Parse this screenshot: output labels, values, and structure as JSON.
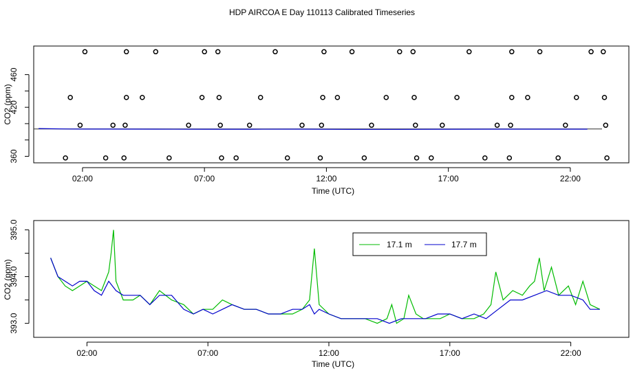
{
  "title": "HDP AIRCOA E  Day 110113  Calibrated Timeseries",
  "colors": {
    "green": "#00bb00",
    "blue": "#0000cc",
    "ref": "#444444"
  },
  "chart_data": [
    {
      "type": "scatter",
      "title": "HDP AIRCOA E  Day 110113  Calibrated Timeseries",
      "xlabel": "Time (UTC)",
      "ylabel": "CO2 (ppm)",
      "xlim": [
        0.0,
        24.4
      ],
      "ylim": [
        352,
        495
      ],
      "xticks": [
        2,
        7,
        12,
        17,
        22
      ],
      "xtick_labels": [
        "02:00",
        "07:00",
        "12:00",
        "17:00",
        "22:00"
      ],
      "yticks": [
        360,
        380,
        400,
        420,
        440,
        460
      ],
      "ytick_labels": [
        "360",
        "420",
        "460"
      ],
      "grid": false,
      "points": [
        {
          "x": 2.1,
          "y": 488
        },
        {
          "x": 3.8,
          "y": 488
        },
        {
          "x": 5.0,
          "y": 488
        },
        {
          "x": 7.0,
          "y": 488
        },
        {
          "x": 7.55,
          "y": 488
        },
        {
          "x": 9.9,
          "y": 488
        },
        {
          "x": 11.9,
          "y": 488
        },
        {
          "x": 13.05,
          "y": 488
        },
        {
          "x": 15.0,
          "y": 488
        },
        {
          "x": 15.55,
          "y": 488
        },
        {
          "x": 17.85,
          "y": 488
        },
        {
          "x": 19.6,
          "y": 488
        },
        {
          "x": 20.75,
          "y": 488
        },
        {
          "x": 22.85,
          "y": 488
        },
        {
          "x": 23.35,
          "y": 488
        },
        {
          "x": 1.5,
          "y": 432
        },
        {
          "x": 3.8,
          "y": 432
        },
        {
          "x": 4.45,
          "y": 432
        },
        {
          "x": 6.9,
          "y": 432
        },
        {
          "x": 7.6,
          "y": 432
        },
        {
          "x": 9.3,
          "y": 432
        },
        {
          "x": 11.85,
          "y": 432
        },
        {
          "x": 12.45,
          "y": 432
        },
        {
          "x": 14.45,
          "y": 432
        },
        {
          "x": 15.6,
          "y": 432
        },
        {
          "x": 17.35,
          "y": 432
        },
        {
          "x": 19.6,
          "y": 432
        },
        {
          "x": 20.25,
          "y": 432
        },
        {
          "x": 22.25,
          "y": 432
        },
        {
          "x": 23.4,
          "y": 432
        },
        {
          "x": 1.9,
          "y": 398
        },
        {
          "x": 3.25,
          "y": 398
        },
        {
          "x": 3.75,
          "y": 398
        },
        {
          "x": 6.35,
          "y": 398
        },
        {
          "x": 7.65,
          "y": 398
        },
        {
          "x": 8.85,
          "y": 398
        },
        {
          "x": 11.0,
          "y": 398
        },
        {
          "x": 11.8,
          "y": 398
        },
        {
          "x": 13.85,
          "y": 398
        },
        {
          "x": 15.65,
          "y": 398
        },
        {
          "x": 16.75,
          "y": 398
        },
        {
          "x": 19.0,
          "y": 398
        },
        {
          "x": 19.55,
          "y": 398
        },
        {
          "x": 21.8,
          "y": 398
        },
        {
          "x": 23.45,
          "y": 398
        },
        {
          "x": 1.3,
          "y": 358
        },
        {
          "x": 2.95,
          "y": 358
        },
        {
          "x": 3.7,
          "y": 358
        },
        {
          "x": 5.55,
          "y": 358
        },
        {
          "x": 7.7,
          "y": 358
        },
        {
          "x": 8.3,
          "y": 358
        },
        {
          "x": 10.4,
          "y": 358
        },
        {
          "x": 11.75,
          "y": 358
        },
        {
          "x": 13.55,
          "y": 358
        },
        {
          "x": 15.7,
          "y": 358
        },
        {
          "x": 16.3,
          "y": 358
        },
        {
          "x": 18.5,
          "y": 358
        },
        {
          "x": 19.5,
          "y": 358
        },
        {
          "x": 21.5,
          "y": 358
        },
        {
          "x": 23.5,
          "y": 358
        }
      ],
      "series": [
        {
          "color": "#444444",
          "x": [
            0.0,
            23.3
          ],
          "y": [
            393.5,
            393.5
          ]
        },
        {
          "color": "#0000cc",
          "x": [
            0.2,
            1.5,
            3.0,
            5.0,
            7.0,
            9.0,
            11.0,
            13.0,
            15.0,
            17.0,
            19.0,
            21.0,
            22.7
          ],
          "y": [
            394,
            393.4,
            393.3,
            393.2,
            393.1,
            393.1,
            393.2,
            393.0,
            393.0,
            393.1,
            393.2,
            393.2,
            393.2
          ]
        }
      ]
    },
    {
      "type": "line",
      "xlabel": "Time (UTC)",
      "ylabel": "CO2 (ppm)",
      "xlim": [
        -0.2,
        24.4
      ],
      "ylim": [
        392.7,
        395.2
      ],
      "xticks": [
        2,
        7,
        12,
        17,
        22
      ],
      "xtick_labels": [
        "02:00",
        "07:00",
        "12:00",
        "17:00",
        "22:00"
      ],
      "yticks": [
        393.0,
        393.5,
        394.0,
        394.5,
        395.0
      ],
      "ytick_labels": [
        "393.0",
        "394.0",
        "395.0"
      ],
      "grid": false,
      "legend": {
        "position": "top-center"
      },
      "series": [
        {
          "name": "17.1 m",
          "color": "#00bb00",
          "x": [
            0.5,
            0.8,
            1.1,
            1.4,
            1.7,
            2.0,
            2.3,
            2.6,
            2.9,
            3.0,
            3.1,
            3.2,
            3.5,
            3.9,
            4.2,
            4.6,
            5.0,
            5.5,
            6.0,
            6.4,
            6.8,
            7.2,
            7.6,
            8.0,
            8.5,
            9.0,
            9.5,
            10.0,
            10.5,
            10.9,
            11.2,
            11.4,
            11.6,
            12.0,
            12.5,
            13.0,
            13.5,
            14.0,
            14.4,
            14.6,
            14.8,
            15.1,
            15.3,
            15.6,
            15.9,
            16.2,
            16.6,
            17.0,
            17.5,
            18.0,
            18.4,
            18.7,
            18.9,
            19.2,
            19.6,
            20.0,
            20.3,
            20.5,
            20.7,
            20.9,
            21.2,
            21.5,
            21.9,
            22.2,
            22.5,
            22.8,
            23.2
          ],
          "y": [
            394.4,
            394.0,
            393.8,
            393.7,
            393.8,
            393.9,
            393.8,
            393.7,
            394.1,
            394.5,
            395.0,
            393.9,
            393.5,
            393.5,
            393.6,
            393.4,
            393.7,
            393.5,
            393.4,
            393.2,
            393.3,
            393.3,
            393.5,
            393.4,
            393.3,
            393.3,
            393.2,
            393.2,
            393.2,
            393.3,
            393.5,
            394.6,
            393.4,
            393.2,
            393.1,
            393.1,
            393.1,
            393.0,
            393.1,
            393.4,
            393.0,
            393.1,
            393.6,
            393.2,
            393.1,
            393.1,
            393.1,
            393.2,
            393.1,
            393.1,
            393.2,
            393.4,
            394.1,
            393.5,
            393.7,
            393.6,
            393.8,
            393.9,
            394.4,
            393.7,
            394.2,
            393.6,
            393.8,
            393.4,
            393.9,
            393.4,
            393.3
          ]
        },
        {
          "name": "17.7 m",
          "color": "#0000cc",
          "x": [
            0.5,
            0.8,
            1.1,
            1.4,
            1.7,
            2.0,
            2.3,
            2.6,
            2.9,
            3.2,
            3.5,
            3.9,
            4.2,
            4.6,
            5.0,
            5.5,
            6.0,
            6.4,
            6.8,
            7.2,
            7.6,
            8.0,
            8.5,
            9.0,
            9.5,
            10.0,
            10.5,
            10.9,
            11.2,
            11.4,
            11.6,
            12.0,
            12.5,
            13.0,
            13.5,
            14.0,
            14.5,
            15.0,
            15.5,
            16.0,
            16.5,
            17.0,
            17.5,
            18.0,
            18.5,
            19.0,
            19.5,
            20.0,
            20.5,
            21.0,
            21.5,
            22.0,
            22.5,
            22.8,
            23.2
          ],
          "y": [
            394.4,
            394.0,
            393.9,
            393.8,
            393.9,
            393.9,
            393.7,
            393.6,
            393.9,
            393.7,
            393.6,
            393.6,
            393.6,
            393.4,
            393.6,
            393.6,
            393.3,
            393.2,
            393.3,
            393.2,
            393.3,
            393.4,
            393.3,
            393.3,
            393.2,
            393.2,
            393.3,
            393.3,
            393.4,
            393.2,
            393.3,
            393.2,
            393.1,
            393.1,
            393.1,
            393.1,
            393.0,
            393.1,
            393.1,
            393.1,
            393.2,
            393.2,
            393.1,
            393.2,
            393.1,
            393.3,
            393.5,
            393.5,
            393.6,
            393.7,
            393.6,
            393.6,
            393.5,
            393.3,
            393.3
          ]
        }
      ]
    }
  ]
}
